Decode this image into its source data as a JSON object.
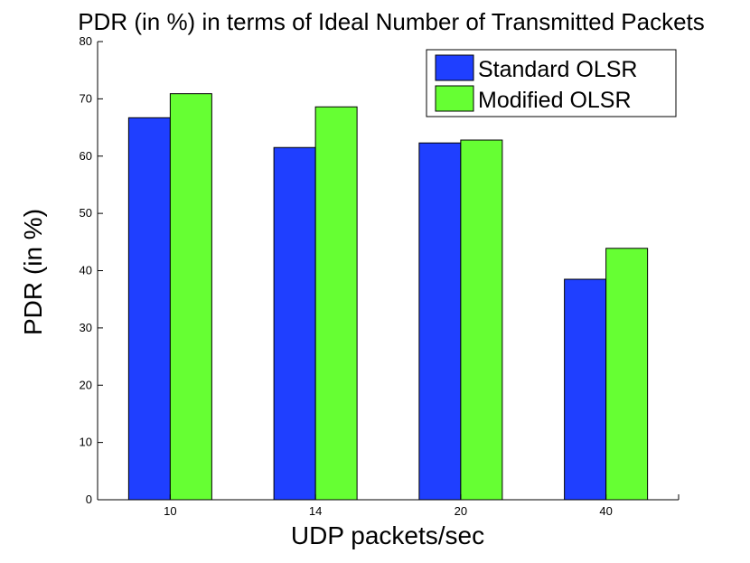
{
  "chart_data": {
    "type": "bar",
    "title": "PDR (in %) in terms of Ideal Number of Transmitted Packets",
    "xlabel": "UDP packets/sec",
    "ylabel": "PDR (in %)",
    "categories": [
      "10",
      "14",
      "20",
      "40"
    ],
    "ylim": [
      0,
      80
    ],
    "yticks": [
      "0",
      "10",
      "20",
      "30",
      "40",
      "50",
      "60",
      "70",
      "80"
    ],
    "grid": false,
    "legend_position": "top-right",
    "series": [
      {
        "name": "Standard OLSR",
        "color": "#1f3fff",
        "values": [
          66.7,
          61.5,
          62.3,
          38.5
        ]
      },
      {
        "name": "Modified OLSR",
        "color": "#66ff33",
        "values": [
          70.9,
          68.6,
          62.8,
          43.9
        ]
      }
    ]
  }
}
